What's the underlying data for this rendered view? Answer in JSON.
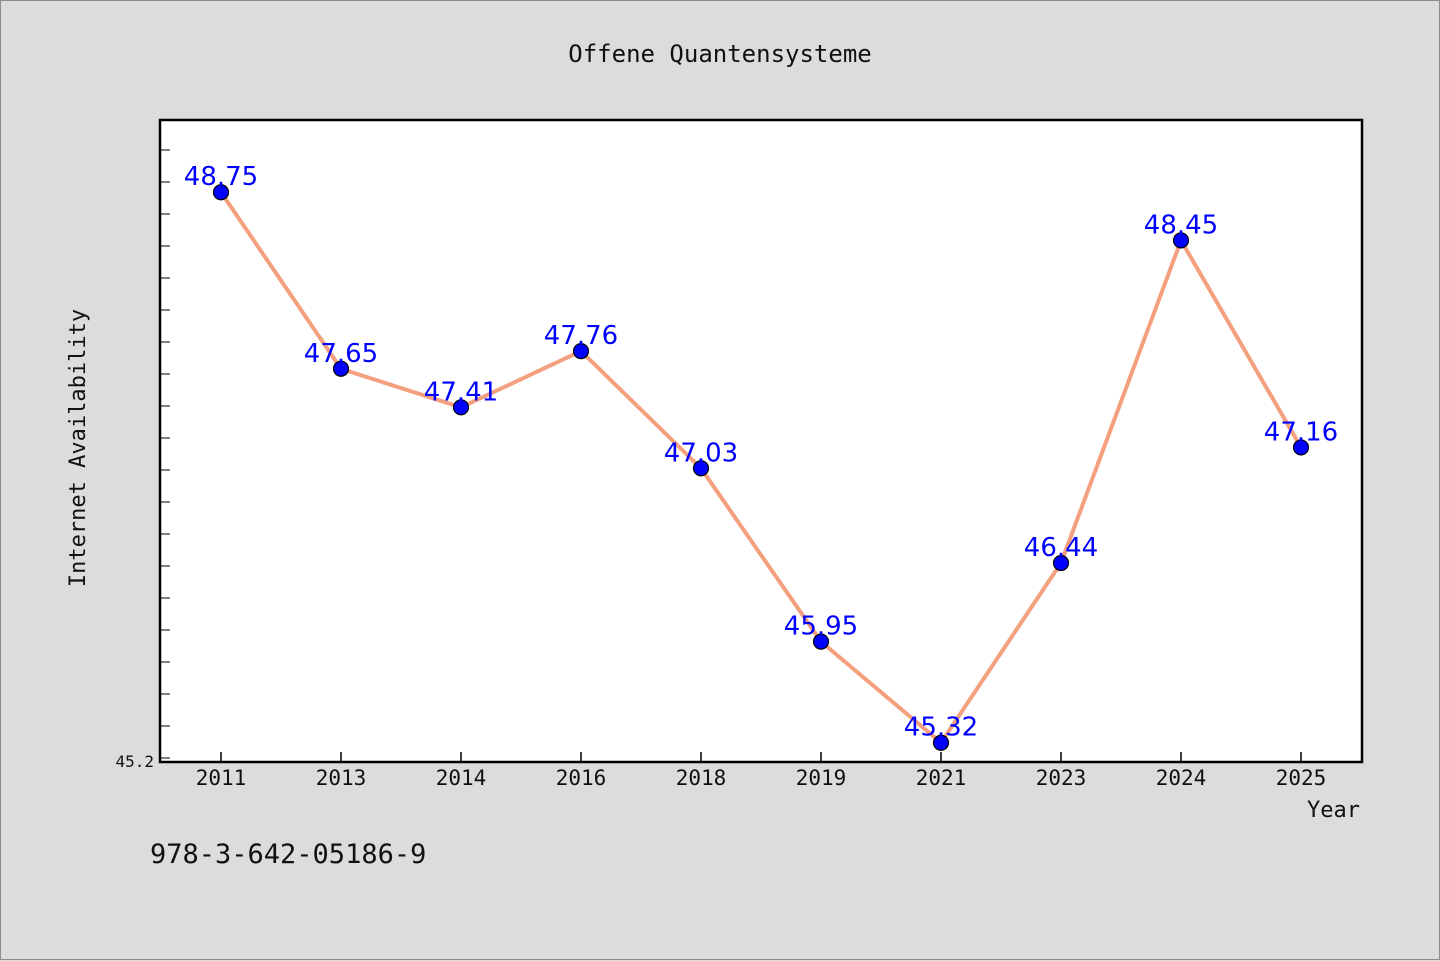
{
  "chart_data": {
    "type": "line",
    "title": "Offene Quantensysteme",
    "xlabel": "Year",
    "ylabel": "Internet Availability",
    "categories": [
      "2011",
      "2013",
      "2014",
      "2016",
      "2018",
      "2019",
      "2021",
      "2023",
      "2024",
      "2025"
    ],
    "values": [
      48.75,
      47.65,
      47.41,
      47.76,
      47.03,
      45.95,
      45.32,
      46.44,
      48.45,
      47.16
    ],
    "data_labels": [
      "48.75",
      "47.65",
      "47.41",
      "47.76",
      "47.03",
      "45.95",
      "45.32",
      "46.44",
      "48.45",
      "47.16"
    ],
    "ylim": [
      45.2,
      49.2
    ],
    "y_tick_labels": [
      "45.2"
    ],
    "grid": false,
    "line_color": "#f4a07e",
    "marker_color": "#0000ff",
    "label_color": "#0000ff"
  },
  "footnote": "978-3-642-05186-9"
}
